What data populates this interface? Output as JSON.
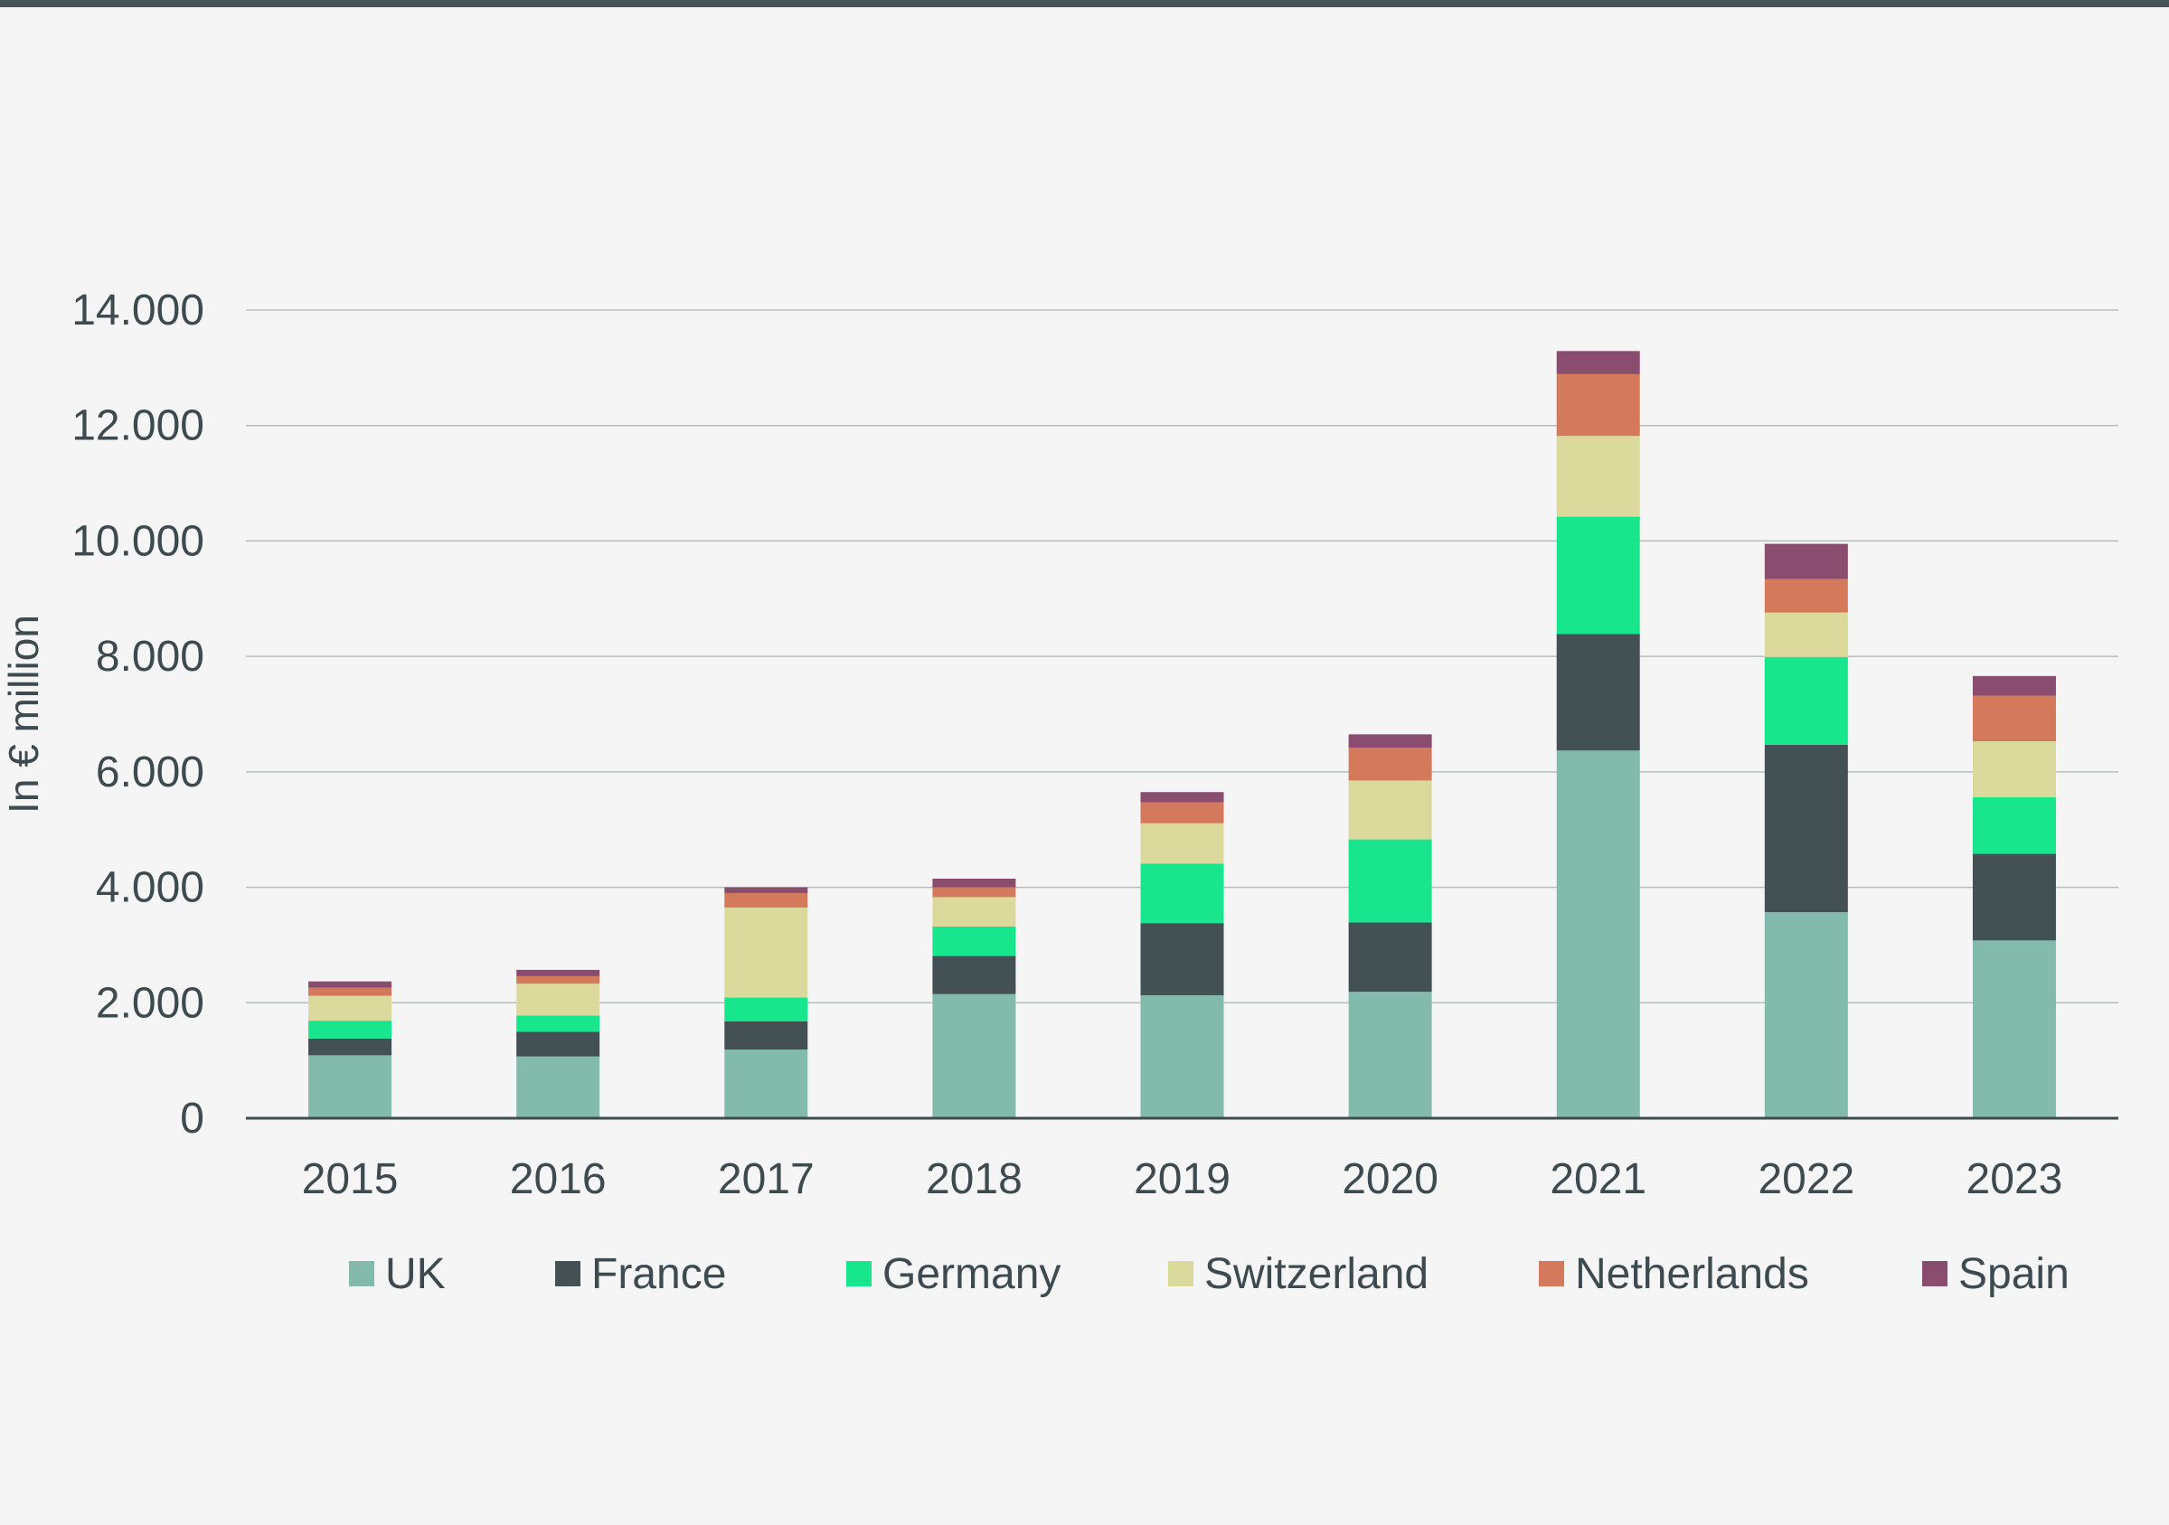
{
  "chart_data": {
    "type": "bar",
    "stacked": true,
    "title": "",
    "xlabel": "",
    "ylabel": "In € million",
    "ylim": [
      0,
      14000
    ],
    "y_ticks": [
      {
        "value": 0,
        "label": "0"
      },
      {
        "value": 2000,
        "label": "2.000"
      },
      {
        "value": 4000,
        "label": "4.000"
      },
      {
        "value": 6000,
        "label": "6.000"
      },
      {
        "value": 8000,
        "label": "8.000"
      },
      {
        "value": 10000,
        "label": "10.000"
      },
      {
        "value": 12000,
        "label": "12.000"
      },
      {
        "value": 14000,
        "label": "14.000"
      }
    ],
    "grid": true,
    "legend_position": "bottom",
    "categories": [
      "2015",
      "2016",
      "2017",
      "2018",
      "2019",
      "2020",
      "2021",
      "2022",
      "2023"
    ],
    "series": [
      {
        "name": "UK",
        "color": "#82bbab",
        "values": [
          1090,
          1070,
          1190,
          2150,
          2130,
          2190,
          6370,
          3570,
          3080
        ]
      },
      {
        "name": "France",
        "color": "#435155",
        "values": [
          290,
          430,
          490,
          660,
          1250,
          1200,
          2020,
          2900,
          1500
        ]
      },
      {
        "name": "Germany",
        "color": "#18e68c",
        "values": [
          310,
          280,
          410,
          510,
          1030,
          1440,
          2030,
          1520,
          980
        ]
      },
      {
        "name": "Switzerland",
        "color": "#dcd99c",
        "values": [
          430,
          550,
          1560,
          510,
          700,
          1020,
          1400,
          770,
          970
        ]
      },
      {
        "name": "Netherlands",
        "color": "#d4795b",
        "values": [
          140,
          130,
          250,
          170,
          360,
          570,
          1070,
          580,
          790
        ]
      },
      {
        "name": "Spain",
        "color": "#8b4d6f",
        "values": [
          110,
          110,
          100,
          150,
          180,
          230,
          400,
          610,
          340
        ]
      }
    ]
  }
}
